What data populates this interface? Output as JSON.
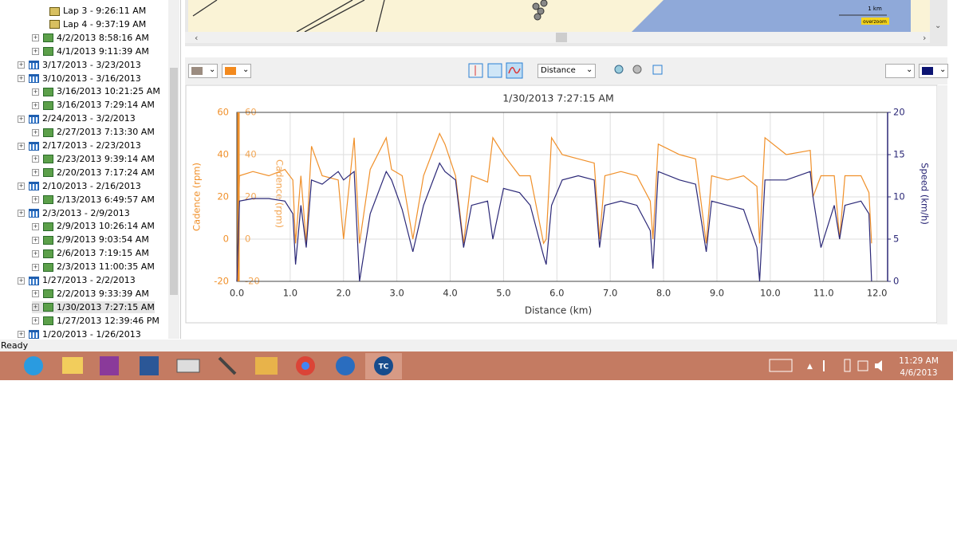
{
  "tree": {
    "items": [
      "Lap 3 - 9:26:11 AM",
      "Lap 4 - 9:37:19 AM",
      "4/2/2013 8:58:16 AM",
      "4/1/2013 9:11:39 AM",
      "3/17/2013 - 3/23/2013",
      "3/10/2013 - 3/16/2013",
      "3/16/2013 10:21:25 AM",
      "3/16/2013 7:29:14 AM",
      "2/24/2013 - 3/2/2013",
      "2/27/2013 7:13:30 AM",
      "2/17/2013 - 2/23/2013",
      "2/23/2013 9:39:14 AM",
      "2/20/2013 7:17:24 AM",
      "2/10/2013 - 2/16/2013",
      "2/13/2013 6:49:57 AM",
      "2/3/2013 - 2/9/2013",
      "2/9/2013 10:26:14 AM",
      "2/9/2013 9:03:54 AM",
      "2/6/2013 7:19:15 AM",
      "2/3/2013 11:00:35 AM",
      "1/27/2013 - 2/2/2013",
      "2/2/2013 9:33:39 AM",
      "1/30/2013 7:27:15 AM",
      "1/27/2013 12:39:46 PM",
      "1/20/2013 - 1/26/2013"
    ],
    "selected": "1/30/2013 7:27:15 AM"
  },
  "map": {
    "scale": "1 km",
    "overzoom": "overzoom"
  },
  "toolbar": {
    "x_axis_select": "Distance"
  },
  "chart_data": {
    "type": "line",
    "title": "1/30/2013 7:27:15 AM",
    "xlabel": "Distance (km)",
    "ylabel": "Cadence (rpm)",
    "y2label": "Speed (km/h)",
    "grid": true,
    "x": [
      0,
      0.05,
      0.3,
      0.6,
      0.9,
      1.05,
      1.1,
      1.2,
      1.3,
      1.4,
      1.6,
      1.9,
      2.0,
      2.2,
      2.3,
      2.5,
      2.8,
      2.9,
      3.1,
      3.3,
      3.5,
      3.8,
      3.9,
      4.1,
      4.25,
      4.4,
      4.7,
      4.8,
      5.0,
      5.3,
      5.5,
      5.75,
      5.8,
      5.9,
      6.1,
      6.4,
      6.7,
      6.8,
      6.9,
      7.2,
      7.5,
      7.75,
      7.8,
      7.9,
      8.3,
      8.6,
      8.8,
      8.9,
      9.2,
      9.5,
      9.75,
      9.8,
      9.9,
      10.3,
      10.75,
      10.8,
      10.95,
      11.2,
      11.3,
      11.4,
      11.7,
      11.85,
      11.9
    ],
    "series": [
      {
        "color": "#f0902a",
        "values": [
          -20,
          30,
          32,
          30,
          33,
          28,
          -2,
          30,
          -2,
          44,
          30,
          28,
          0,
          48,
          -2,
          33,
          48,
          33,
          30,
          0,
          30,
          50,
          45,
          30,
          -2,
          30,
          27,
          48,
          40,
          30,
          30,
          -2,
          0,
          48,
          40,
          38,
          36,
          0,
          30,
          32,
          30,
          18,
          0,
          45,
          40,
          38,
          -2,
          30,
          28,
          30,
          25,
          -2,
          48,
          40,
          42,
          20,
          30,
          30,
          0,
          30,
          30,
          22,
          -2
        ]
      },
      {
        "color": "#2b2877",
        "axis": "y2",
        "values": [
          0,
          9.5,
          9.8,
          9.8,
          9.5,
          8,
          2,
          9,
          4,
          12,
          11.5,
          13,
          12,
          13,
          0,
          8,
          13,
          12,
          8.5,
          3.5,
          9,
          14,
          13,
          12,
          4,
          9,
          9.5,
          5,
          11,
          10.5,
          9,
          3,
          2,
          9,
          12,
          12.5,
          12,
          4,
          9,
          9.5,
          9,
          6,
          1.5,
          13,
          12,
          11.5,
          3.5,
          9.5,
          9,
          8.5,
          4,
          0,
          12,
          12,
          13,
          10,
          4,
          9,
          5,
          9,
          9.5,
          8,
          0
        ]
      }
    ],
    "xlim": [
      0,
      12.2
    ],
    "xticks": [
      {
        "value": 0,
        "label": "0.0"
      },
      {
        "value": 1,
        "label": "1.0"
      },
      {
        "value": 2,
        "label": "2.0"
      },
      {
        "value": 3,
        "label": "3.0"
      },
      {
        "value": 4,
        "label": "4.0"
      },
      {
        "value": 5,
        "label": "5.0"
      },
      {
        "value": 6,
        "label": "6.0"
      },
      {
        "value": 7,
        "label": "7.0"
      },
      {
        "value": 8,
        "label": "8.0"
      },
      {
        "value": 9,
        "label": "9.0"
      },
      {
        "value": 10,
        "label": "10.0"
      },
      {
        "value": 11,
        "label": "11.0"
      },
      {
        "value": 12,
        "label": "12.0"
      }
    ],
    "ylim": [
      -20,
      60
    ],
    "yticks": [
      60,
      40,
      20,
      0,
      -20
    ],
    "y2lim": [
      0,
      20
    ],
    "y2ticks": [
      0,
      5,
      10,
      15,
      20
    ]
  },
  "status": "Ready",
  "taskbar": {
    "app": "TC",
    "time": "11:29 AM",
    "date": "4/6/2013"
  }
}
